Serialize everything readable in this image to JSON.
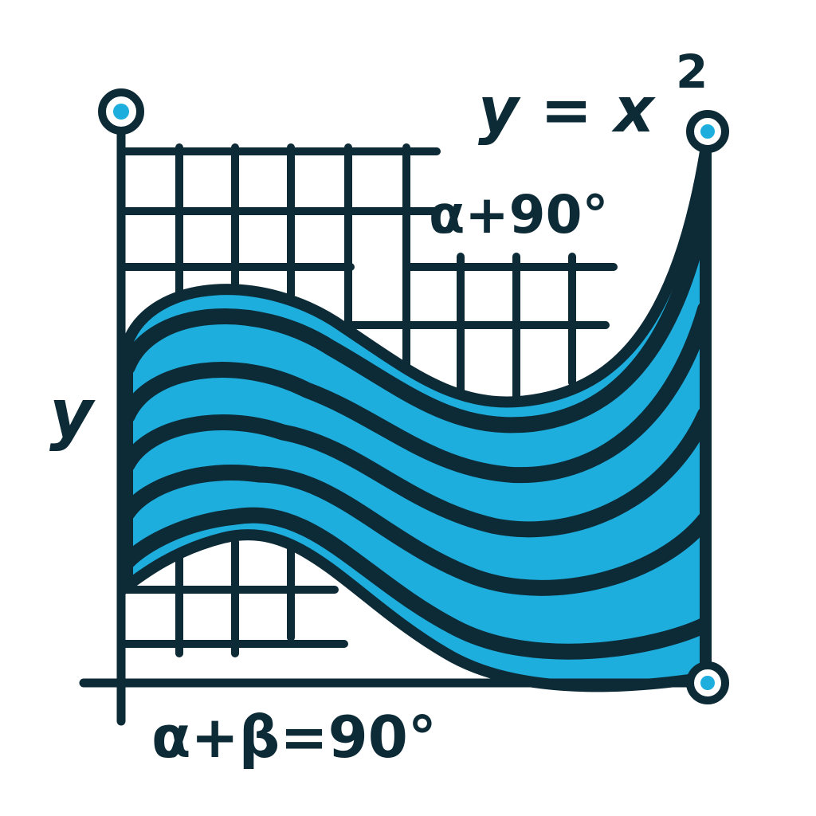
{
  "labels": {
    "formula_top": "y = x",
    "formula_top_exponent": "2",
    "angle_upper": "α+90°",
    "y_axis": "y",
    "angle_bottom": "α+β=90°"
  },
  "colors": {
    "ink": "#0d2b36",
    "accent": "#1eaede",
    "background": "#ffffff"
  },
  "wave_band_count": 5,
  "icons": [
    "axis-endpoint-dot-icon"
  ]
}
